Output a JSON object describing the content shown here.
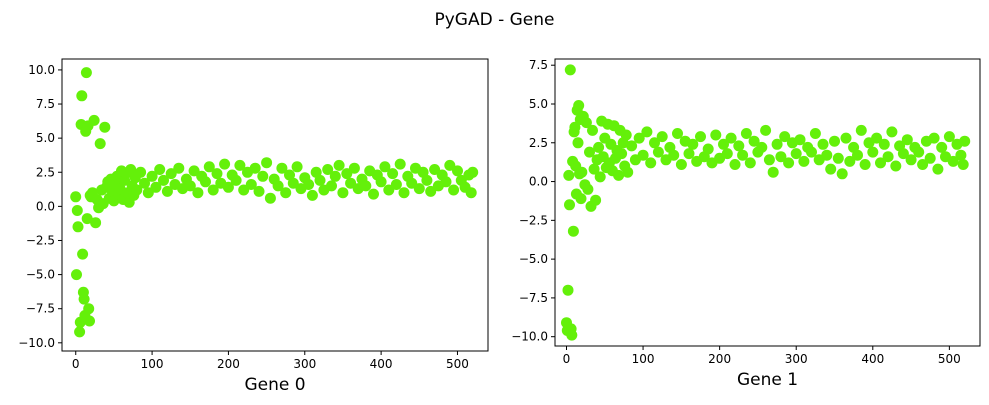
{
  "figure": {
    "suptitle": "PyGAD - Gene"
  },
  "chart_data": [
    {
      "type": "scatter",
      "title": "",
      "xlabel": "Gene 0",
      "ylabel": "",
      "xlim": [
        -18,
        540
      ],
      "ylim": [
        -10.6,
        10.8
      ],
      "xticks": [
        0,
        100,
        200,
        300,
        400,
        500
      ],
      "xtick_labels": [
        "0",
        "100",
        "200",
        "300",
        "400",
        "500"
      ],
      "yticks": [
        -10,
        -7.5,
        -5,
        -2.5,
        0,
        2.5,
        5,
        7.5,
        10
      ],
      "ytick_labels": [
        "−10.0",
        "−7.5",
        "−5.0",
        "−2.5",
        "0.0",
        "2.5",
        "5.0",
        "7.5",
        "10.0"
      ],
      "grid": false,
      "marker_color": "#64F00A",
      "points": [
        [
          0,
          0.7
        ],
        [
          1,
          -5
        ],
        [
          2,
          -0.3
        ],
        [
          3,
          -1.5
        ],
        [
          5,
          -9.2
        ],
        [
          6,
          -8.5
        ],
        [
          7,
          6.0
        ],
        [
          8,
          8.1
        ],
        [
          9,
          -3.5
        ],
        [
          10,
          -6.3
        ],
        [
          11,
          -6.8
        ],
        [
          12,
          -8.0
        ],
        [
          13,
          5.5
        ],
        [
          14,
          9.8
        ],
        [
          15,
          -0.9
        ],
        [
          16,
          5.9
        ],
        [
          17,
          -7.5
        ],
        [
          18,
          -8.4
        ],
        [
          19,
          0.8
        ],
        [
          20,
          0.7
        ],
        [
          22,
          1.0
        ],
        [
          24,
          6.3
        ],
        [
          26,
          -1.2
        ],
        [
          28,
          0.5
        ],
        [
          30,
          -0.1
        ],
        [
          32,
          4.6
        ],
        [
          34,
          1.2
        ],
        [
          36,
          0.2
        ],
        [
          38,
          5.8
        ],
        [
          40,
          1.4
        ],
        [
          42,
          1.8
        ],
        [
          44,
          0.6
        ],
        [
          46,
          2.0
        ],
        [
          48,
          1.1
        ],
        [
          50,
          0.4
        ],
        [
          52,
          1.6
        ],
        [
          54,
          2.2
        ],
        [
          56,
          0.9
        ],
        [
          58,
          1.3
        ],
        [
          60,
          2.6
        ],
        [
          62,
          0.5
        ],
        [
          64,
          1.9
        ],
        [
          66,
          2.4
        ],
        [
          68,
          1.0
        ],
        [
          70,
          0.3
        ],
        [
          72,
          2.7
        ],
        [
          74,
          1.5
        ],
        [
          76,
          0.8
        ],
        [
          78,
          2.1
        ],
        [
          80,
          1.2
        ],
        [
          85,
          2.5
        ],
        [
          90,
          1.7
        ],
        [
          95,
          1.0
        ],
        [
          100,
          2.2
        ],
        [
          105,
          1.4
        ],
        [
          110,
          2.7
        ],
        [
          115,
          1.9
        ],
        [
          120,
          1.1
        ],
        [
          125,
          2.4
        ],
        [
          130,
          1.6
        ],
        [
          135,
          2.8
        ],
        [
          140,
          1.3
        ],
        [
          145,
          2.0
        ],
        [
          150,
          1.5
        ],
        [
          155,
          2.6
        ],
        [
          160,
          1.0
        ],
        [
          165,
          2.2
        ],
        [
          170,
          1.8
        ],
        [
          175,
          2.9
        ],
        [
          180,
          1.2
        ],
        [
          185,
          2.4
        ],
        [
          190,
          1.7
        ],
        [
          195,
          3.1
        ],
        [
          200,
          1.4
        ],
        [
          205,
          2.3
        ],
        [
          210,
          1.9
        ],
        [
          215,
          3.0
        ],
        [
          220,
          1.2
        ],
        [
          225,
          2.5
        ],
        [
          230,
          1.6
        ],
        [
          235,
          2.8
        ],
        [
          240,
          1.1
        ],
        [
          245,
          2.2
        ],
        [
          250,
          3.2
        ],
        [
          255,
          0.6
        ],
        [
          260,
          2.0
        ],
        [
          265,
          1.5
        ],
        [
          270,
          2.8
        ],
        [
          275,
          1.0
        ],
        [
          280,
          2.3
        ],
        [
          285,
          1.7
        ],
        [
          290,
          2.9
        ],
        [
          295,
          1.3
        ],
        [
          300,
          2.1
        ],
        [
          305,
          1.6
        ],
        [
          310,
          0.8
        ],
        [
          315,
          2.5
        ],
        [
          320,
          1.9
        ],
        [
          325,
          1.2
        ],
        [
          330,
          2.7
        ],
        [
          335,
          1.5
        ],
        [
          340,
          2.2
        ],
        [
          345,
          3.0
        ],
        [
          350,
          1.0
        ],
        [
          355,
          2.4
        ],
        [
          360,
          1.7
        ],
        [
          365,
          2.8
        ],
        [
          370,
          1.3
        ],
        [
          375,
          2.0
        ],
        [
          380,
          1.5
        ],
        [
          385,
          2.6
        ],
        [
          390,
          0.9
        ],
        [
          395,
          2.3
        ],
        [
          400,
          1.8
        ],
        [
          405,
          2.9
        ],
        [
          410,
          1.2
        ],
        [
          415,
          2.4
        ],
        [
          420,
          1.6
        ],
        [
          425,
          3.1
        ],
        [
          430,
          1.0
        ],
        [
          435,
          2.2
        ],
        [
          440,
          1.7
        ],
        [
          445,
          2.8
        ],
        [
          450,
          1.3
        ],
        [
          455,
          2.5
        ],
        [
          460,
          1.9
        ],
        [
          465,
          1.1
        ],
        [
          470,
          2.7
        ],
        [
          475,
          1.5
        ],
        [
          480,
          2.3
        ],
        [
          485,
          1.8
        ],
        [
          490,
          3.0
        ],
        [
          495,
          1.2
        ],
        [
          500,
          2.6
        ],
        [
          505,
          1.9
        ],
        [
          510,
          1.4
        ],
        [
          515,
          2.3
        ],
        [
          518,
          1.0
        ],
        [
          520,
          2.5
        ]
      ]
    },
    {
      "type": "scatter",
      "title": "",
      "xlabel": "Gene 1",
      "ylabel": "",
      "xlim": [
        -15,
        540
      ],
      "ylim": [
        -10.6,
        7.9
      ],
      "xticks": [
        0,
        100,
        200,
        300,
        400,
        500
      ],
      "xtick_labels": [
        "0",
        "100",
        "200",
        "300",
        "400",
        "500"
      ],
      "yticks": [
        -10,
        -7.5,
        -5,
        -2.5,
        0,
        2.5,
        5,
        7.5
      ],
      "ytick_labels": [
        "−10.0",
        "−7.5",
        "−5.0",
        "−2.5",
        "0.0",
        "2.5",
        "5.0",
        "7.5"
      ],
      "grid": false,
      "marker_color": "#64F00A",
      "points": [
        [
          0,
          -9.1
        ],
        [
          1,
          -9.6
        ],
        [
          2,
          -7.0
        ],
        [
          3,
          0.4
        ],
        [
          4,
          -1.5
        ],
        [
          5,
          7.2
        ],
        [
          6,
          -9.5
        ],
        [
          7,
          -9.9
        ],
        [
          8,
          1.3
        ],
        [
          9,
          -3.2
        ],
        [
          10,
          3.2
        ],
        [
          11,
          3.5
        ],
        [
          12,
          1.0
        ],
        [
          13,
          -0.8
        ],
        [
          14,
          4.6
        ],
        [
          15,
          2.5
        ],
        [
          16,
          4.9
        ],
        [
          17,
          0.5
        ],
        [
          18,
          4.0
        ],
        [
          19,
          -1.1
        ],
        [
          20,
          0.6
        ],
        [
          22,
          4.2
        ],
        [
          24,
          -0.2
        ],
        [
          26,
          3.8
        ],
        [
          28,
          -0.5
        ],
        [
          30,
          1.9
        ],
        [
          32,
          -1.6
        ],
        [
          34,
          3.3
        ],
        [
          36,
          0.8
        ],
        [
          38,
          -1.2
        ],
        [
          40,
          1.4
        ],
        [
          42,
          2.2
        ],
        [
          44,
          0.3
        ],
        [
          46,
          3.9
        ],
        [
          48,
          1.6
        ],
        [
          50,
          2.8
        ],
        [
          52,
          0.9
        ],
        [
          54,
          3.7
        ],
        [
          56,
          1.2
        ],
        [
          58,
          2.4
        ],
        [
          60,
          0.7
        ],
        [
          62,
          3.6
        ],
        [
          64,
          1.5
        ],
        [
          66,
          2.0
        ],
        [
          68,
          0.4
        ],
        [
          70,
          3.3
        ],
        [
          72,
          1.8
        ],
        [
          74,
          2.5
        ],
        [
          76,
          1.0
        ],
        [
          78,
          3.0
        ],
        [
          80,
          0.6
        ],
        [
          85,
          2.3
        ],
        [
          90,
          1.4
        ],
        [
          95,
          2.8
        ],
        [
          100,
          1.7
        ],
        [
          105,
          3.2
        ],
        [
          110,
          1.2
        ],
        [
          115,
          2.5
        ],
        [
          120,
          1.9
        ],
        [
          125,
          2.9
        ],
        [
          130,
          1.4
        ],
        [
          135,
          2.2
        ],
        [
          140,
          1.7
        ],
        [
          145,
          3.1
        ],
        [
          150,
          1.1
        ],
        [
          155,
          2.6
        ],
        [
          160,
          1.8
        ],
        [
          165,
          2.4
        ],
        [
          170,
          1.3
        ],
        [
          175,
          2.9
        ],
        [
          180,
          1.6
        ],
        [
          185,
          2.1
        ],
        [
          190,
          1.2
        ],
        [
          195,
          3.0
        ],
        [
          200,
          1.5
        ],
        [
          205,
          2.4
        ],
        [
          210,
          1.8
        ],
        [
          215,
          2.8
        ],
        [
          220,
          1.1
        ],
        [
          225,
          2.3
        ],
        [
          230,
          1.7
        ],
        [
          235,
          3.1
        ],
        [
          240,
          1.2
        ],
        [
          245,
          2.6
        ],
        [
          250,
          1.9
        ],
        [
          255,
          2.2
        ],
        [
          260,
          3.3
        ],
        [
          265,
          1.4
        ],
        [
          270,
          0.6
        ],
        [
          275,
          2.4
        ],
        [
          280,
          1.6
        ],
        [
          285,
          2.9
        ],
        [
          290,
          1.2
        ],
        [
          295,
          2.5
        ],
        [
          300,
          1.8
        ],
        [
          305,
          2.7
        ],
        [
          310,
          1.3
        ],
        [
          315,
          2.2
        ],
        [
          320,
          1.9
        ],
        [
          325,
          3.1
        ],
        [
          330,
          1.4
        ],
        [
          335,
          2.4
        ],
        [
          340,
          1.7
        ],
        [
          345,
          0.8
        ],
        [
          350,
          2.6
        ],
        [
          355,
          1.5
        ],
        [
          360,
          0.5
        ],
        [
          365,
          2.8
        ],
        [
          370,
          1.3
        ],
        [
          375,
          2.2
        ],
        [
          380,
          1.7
        ],
        [
          385,
          3.3
        ],
        [
          390,
          1.1
        ],
        [
          395,
          2.5
        ],
        [
          400,
          1.9
        ],
        [
          405,
          2.8
        ],
        [
          410,
          1.2
        ],
        [
          415,
          2.4
        ],
        [
          420,
          1.6
        ],
        [
          425,
          3.2
        ],
        [
          430,
          1.0
        ],
        [
          435,
          2.3
        ],
        [
          440,
          1.8
        ],
        [
          445,
          2.7
        ],
        [
          450,
          1.4
        ],
        [
          455,
          2.2
        ],
        [
          460,
          1.9
        ],
        [
          465,
          1.1
        ],
        [
          470,
          2.6
        ],
        [
          475,
          1.5
        ],
        [
          480,
          2.8
        ],
        [
          485,
          0.8
        ],
        [
          490,
          2.2
        ],
        [
          495,
          1.6
        ],
        [
          500,
          2.9
        ],
        [
          505,
          1.3
        ],
        [
          510,
          2.4
        ],
        [
          515,
          1.7
        ],
        [
          518,
          1.1
        ],
        [
          520,
          2.6
        ]
      ]
    }
  ]
}
